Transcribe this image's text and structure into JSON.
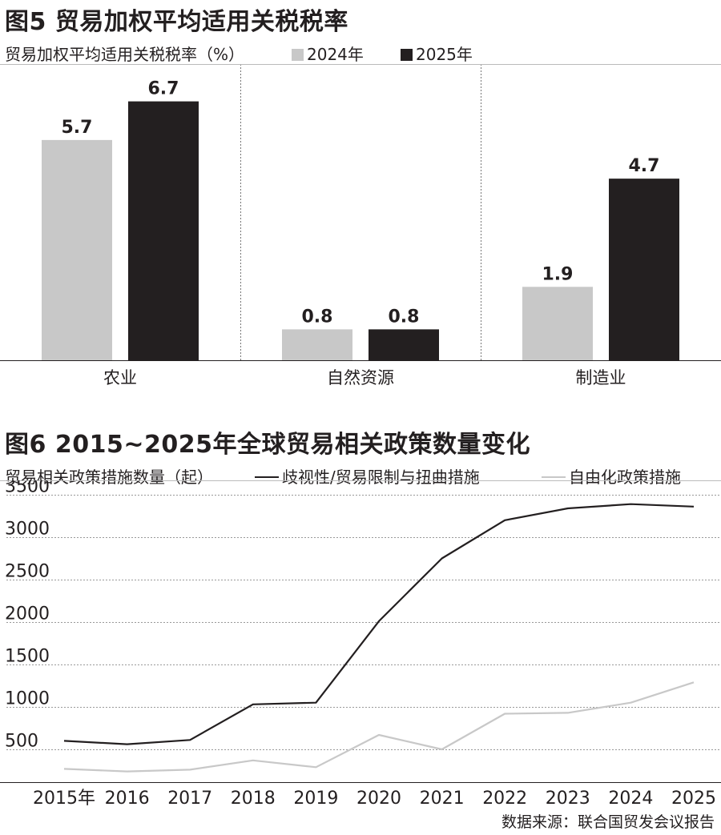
{
  "figures": [
    {
      "title": "图5 贸易加权平均适用关税税率",
      "subtitle": "贸易加权平均适用关税税率（%）",
      "legend": [
        {
          "name": "2024年",
          "color": "#c8c8c8"
        },
        {
          "name": "2025年",
          "color": "#231f20"
        }
      ]
    },
    {
      "title": "图6 2015~2025年全球贸易相关政策数量变化",
      "subtitle": "贸易相关政策措施数量（起）",
      "legend": [
        {
          "name": "歧视性/贸易限制与扭曲措施",
          "color": "#231f20"
        },
        {
          "name": "自由化政策措施",
          "color": "#c8c8c8"
        }
      ]
    }
  ],
  "chart_data": [
    {
      "type": "bar",
      "title": "图5 贸易加权平均适用关税税率",
      "ylabel": "贸易加权平均适用关税税率（%）",
      "categories": [
        "农业",
        "自然资源",
        "制造业"
      ],
      "series": [
        {
          "name": "2024年",
          "color": "#c8c8c8",
          "values": [
            5.7,
            0.8,
            1.9
          ],
          "labels": [
            "5.7",
            "0.8",
            "1.9"
          ]
        },
        {
          "name": "2025年",
          "color": "#231f20",
          "values": [
            6.7,
            0.8,
            4.7
          ],
          "labels": [
            "6.7",
            "0.8",
            "4.7"
          ]
        }
      ],
      "ylim": [
        0,
        7.5
      ],
      "grid": false,
      "legend": "top"
    },
    {
      "type": "line",
      "title": "图6 2015~2025年全球贸易相关政策数量变化",
      "ylabel": "贸易相关政策措施数量（起）",
      "x": [
        "2015年",
        "2016",
        "2017",
        "2018",
        "2019",
        "2020",
        "2021",
        "2022",
        "2023",
        "2024",
        "2025"
      ],
      "series": [
        {
          "name": "歧视性/贸易限制与扭曲措施",
          "color": "#231f20",
          "values": [
            600,
            560,
            610,
            1030,
            1050,
            2010,
            2750,
            3200,
            3340,
            3390,
            3360
          ]
        },
        {
          "name": "自由化政策措施",
          "color": "#c8c8c8",
          "values": [
            270,
            240,
            260,
            370,
            290,
            670,
            500,
            920,
            930,
            1050,
            1290
          ]
        }
      ],
      "yticks": [
        500,
        1000,
        1500,
        2000,
        2500,
        3000,
        3500
      ],
      "ylim": [
        0,
        3500
      ],
      "grid": true,
      "legend": "top"
    }
  ],
  "source": "数据来源：联合国贸发会议报告"
}
